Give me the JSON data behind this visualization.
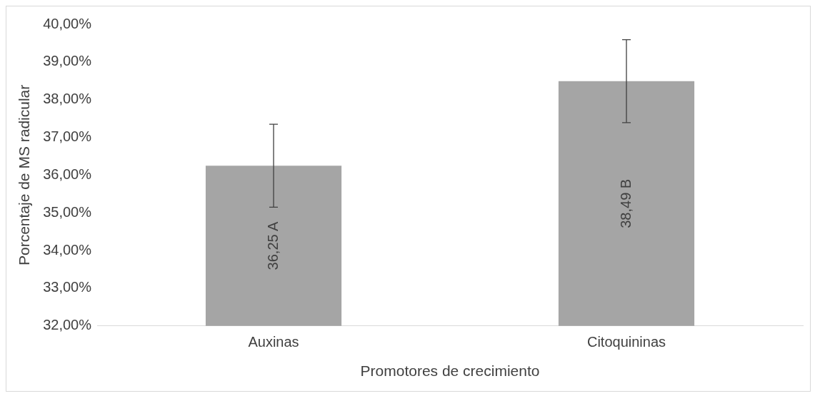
{
  "chart_data": {
    "type": "bar",
    "xlabel": "Promotores de crecimiento",
    "ylabel": "Porcentaje de MS radicular",
    "categories": [
      "Auxinas",
      "Citoquininas"
    ],
    "values": [
      36.25,
      38.49
    ],
    "errors": [
      1.1,
      1.1
    ],
    "value_labels": [
      "36,25 A",
      "38,49 B"
    ],
    "color": "#a5a5a5",
    "ylim": [
      32,
      40
    ],
    "yticks": [
      {
        "value": 32,
        "label": "32,00%"
      },
      {
        "value": 33,
        "label": "33,00%"
      },
      {
        "value": 34,
        "label": "34,00%"
      },
      {
        "value": 35,
        "label": "35,00%"
      },
      {
        "value": 36,
        "label": "36,00%"
      },
      {
        "value": 37,
        "label": "37,00%"
      },
      {
        "value": 38,
        "label": "38,00%"
      },
      {
        "value": 39,
        "label": "39,00%"
      },
      {
        "value": 40,
        "label": "40,00%"
      }
    ],
    "grid": false,
    "legend": false
  }
}
